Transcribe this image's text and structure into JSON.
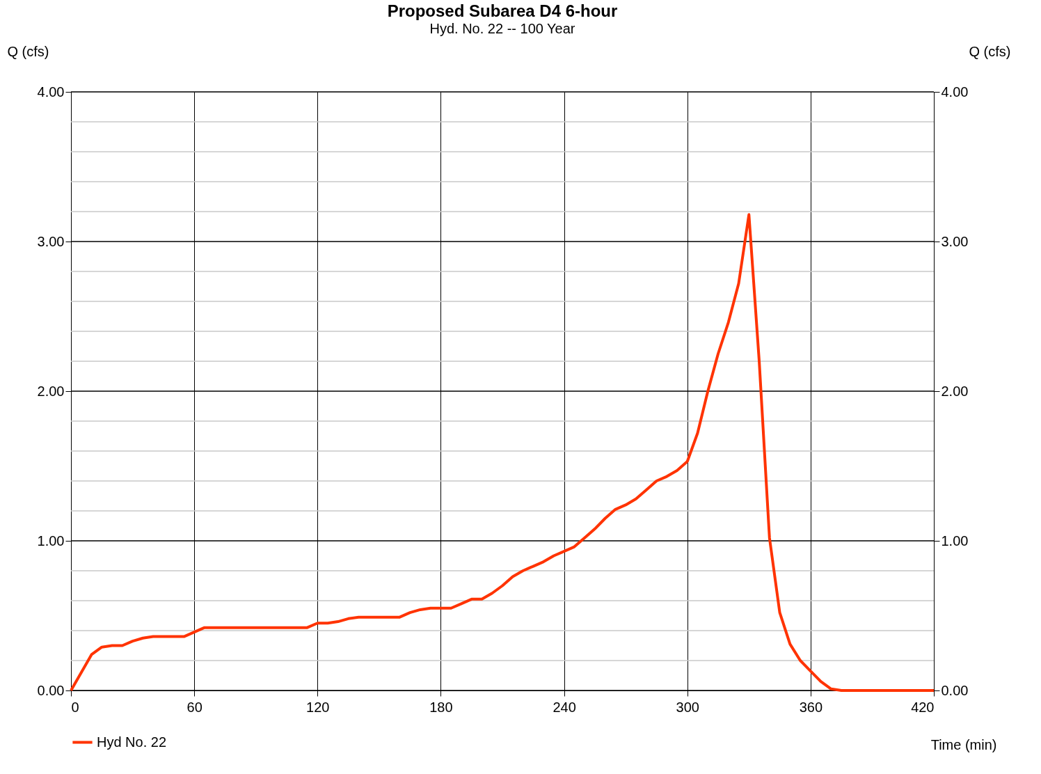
{
  "chart_data": {
    "type": "line",
    "title": "Proposed Subarea D4 6-hour",
    "subtitle": "Hyd. No. 22 -- 100 Year",
    "xlabel": "Time (min)",
    "ylabel": "Q (cfs)",
    "y2label": "Q (cfs)",
    "xlim": [
      0,
      420
    ],
    "xticks": [
      0,
      60,
      120,
      180,
      240,
      300,
      360,
      420
    ],
    "ylim": [
      0,
      4
    ],
    "yticks": [
      {
        "value": 0,
        "label": "0.00"
      },
      {
        "value": 0.2,
        "label": null
      },
      {
        "value": 0.4,
        "label": null
      },
      {
        "value": 0.6,
        "label": null
      },
      {
        "value": 0.8,
        "label": null
      },
      {
        "value": 1,
        "label": "1.00"
      },
      {
        "value": 1.2,
        "label": null
      },
      {
        "value": 1.4,
        "label": null
      },
      {
        "value": 1.6,
        "label": null
      },
      {
        "value": 1.8,
        "label": null
      },
      {
        "value": 2,
        "label": "2.00"
      },
      {
        "value": 2.2,
        "label": null
      },
      {
        "value": 2.4,
        "label": null
      },
      {
        "value": 2.6,
        "label": null
      },
      {
        "value": 2.8,
        "label": null
      },
      {
        "value": 3,
        "label": "3.00"
      },
      {
        "value": 3.2,
        "label": null
      },
      {
        "value": 3.4,
        "label": null
      },
      {
        "value": 3.6,
        "label": null
      },
      {
        "value": 3.8,
        "label": null
      },
      {
        "value": 4,
        "label": "4.00"
      }
    ],
    "y2lim": [
      0,
      4
    ],
    "y2ticks": [
      {
        "value": 0,
        "label": "0.00"
      },
      {
        "value": 1,
        "label": "1.00"
      },
      {
        "value": 2,
        "label": "2.00"
      },
      {
        "value": 3,
        "label": "3.00"
      },
      {
        "value": 4,
        "label": "4.00"
      }
    ],
    "grid": true,
    "legend": "bottom left",
    "line_style": "solid",
    "marker": "none",
    "series": [
      {
        "name": "Hyd No. 22",
        "color": "#ff3300",
        "x": [
          0,
          10,
          15,
          20,
          25,
          30,
          35,
          40,
          55,
          60,
          65,
          115,
          120,
          125,
          130,
          135,
          140,
          160,
          165,
          170,
          175,
          185,
          190,
          195,
          200,
          205,
          210,
          215,
          220,
          225,
          230,
          235,
          240,
          245,
          250,
          255,
          260,
          265,
          270,
          275,
          280,
          285,
          290,
          295,
          300,
          305,
          310,
          315,
          320,
          325,
          330,
          335,
          340,
          345,
          350,
          355,
          360,
          365,
          370,
          375,
          420
        ],
        "values": [
          0,
          0.24,
          0.29,
          0.3,
          0.3,
          0.33,
          0.35,
          0.36,
          0.36,
          0.39,
          0.42,
          0.42,
          0.45,
          0.45,
          0.46,
          0.48,
          0.49,
          0.49,
          0.52,
          0.54,
          0.55,
          0.55,
          0.58,
          0.61,
          0.61,
          0.65,
          0.7,
          0.76,
          0.8,
          0.83,
          0.86,
          0.9,
          0.93,
          0.96,
          1.02,
          1.08,
          1.15,
          1.21,
          1.24,
          1.28,
          1.34,
          1.4,
          1.43,
          1.47,
          1.53,
          1.72,
          2.0,
          2.25,
          2.46,
          2.72,
          3.18,
          2.2,
          1.02,
          0.52,
          0.31,
          0.2,
          0.13,
          0.06,
          0.01,
          0,
          0
        ]
      }
    ]
  }
}
